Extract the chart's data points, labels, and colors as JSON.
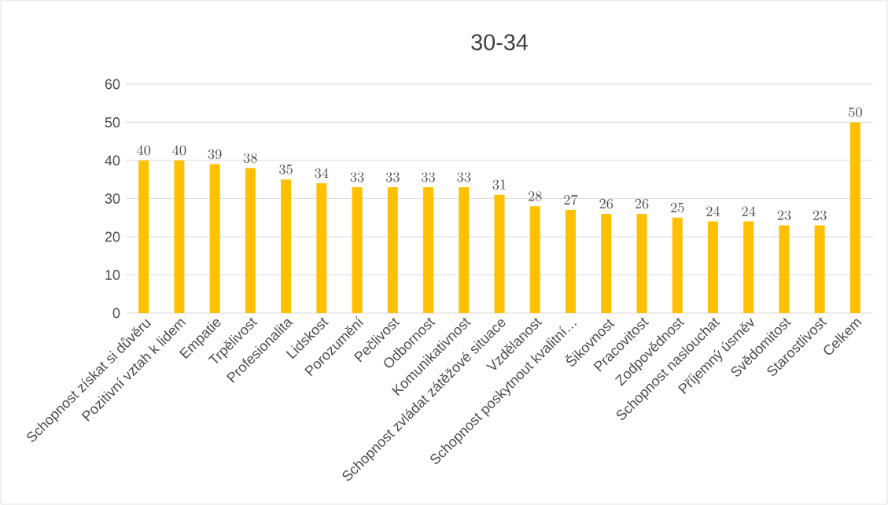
{
  "chart_data": {
    "type": "bar",
    "title": "30-34",
    "categories": [
      "Schopnost získat si důvěru",
      "Pozitivní vztah k lidem",
      "Empatie",
      "Trpělivost",
      "Profesionalita",
      "Lidskost",
      "Porozumění",
      "Pečlivost",
      "Odbornost",
      "Komunikativnost",
      "Schopnost zvládat zátěžové situace",
      "Vzdělanost",
      "Schopnost poskytnout kvalitní…",
      "Šikovnost",
      "Pracovitost",
      "Zodpovědnost",
      "Schopnost naslouchat",
      "Příjemný úsměv",
      "Svědomitost",
      "Starostlivost",
      "Celkem"
    ],
    "values": [
      40,
      40,
      39,
      38,
      35,
      34,
      33,
      33,
      33,
      33,
      31,
      28,
      27,
      26,
      26,
      25,
      24,
      24,
      23,
      23,
      50
    ],
    "color": "#ffc000",
    "ylim": [
      0,
      60
    ],
    "yticks": [
      0,
      10,
      20,
      30,
      40,
      50,
      60
    ],
    "grid": "y",
    "data_labels": true
  }
}
